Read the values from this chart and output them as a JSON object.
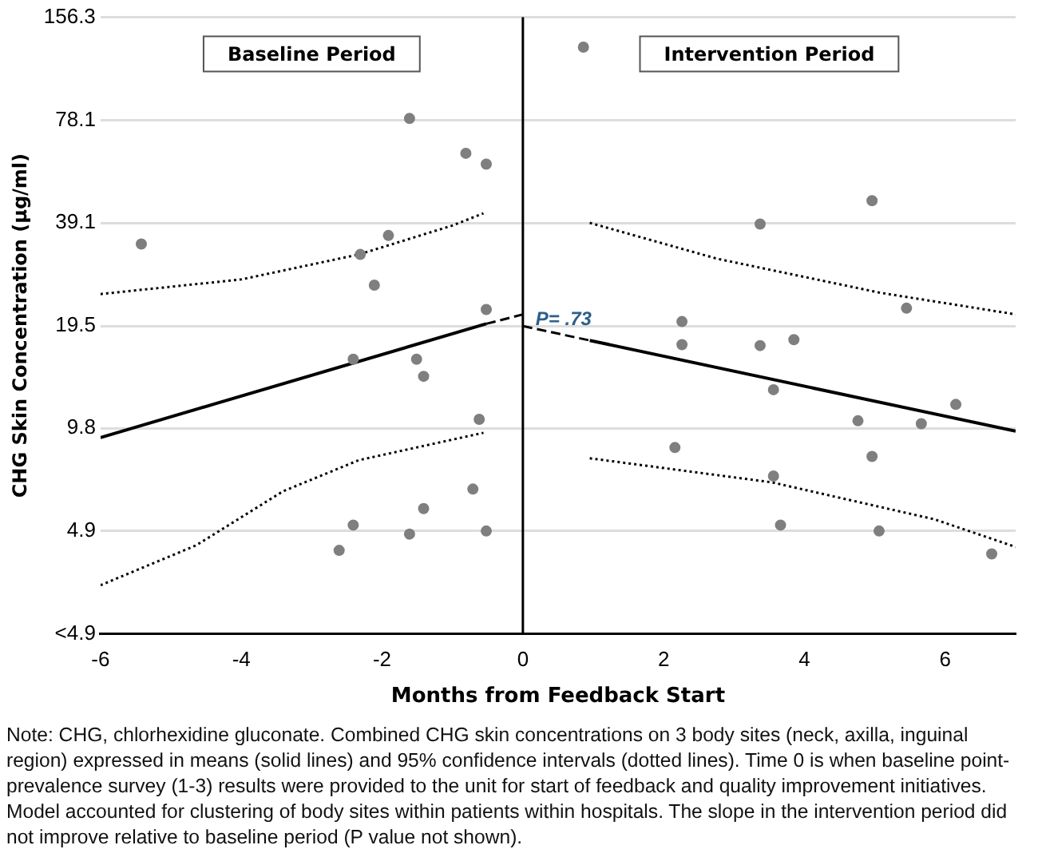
{
  "chart_data": {
    "type": "scatter",
    "xlabel": "Months from Feedback Start",
    "ylabel": "CHG Skin Concentration (µg/ml)",
    "annotations": [
      "Baseline Period",
      "Intervention Period",
      {
        "text": "P= .73",
        "x": 0,
        "y": 20.3
      },
      "Note: CHG, chlorhexidine gluconate. Combined CHG skin concentrations on 3 body sites (neck, axilla, inguinal region) expressed in means (solid lines) and 95% confidence intervals (dotted lines). Time 0 is when baseline point-prevalence survey (1-3) results were provided to the unit for start of feedback and quality improvement initiatives. Model accounted for clustering of body sites within patients within hospitals. The slope in the intervention period did not improve relative to baseline period (P value not shown)."
    ],
    "xlim": [
      -6,
      7
    ],
    "xticks": [
      -6,
      -4,
      -2,
      0,
      2,
      4,
      6
    ],
    "ylim": [
      2.45,
      156.3
    ],
    "yticks": [
      {
        "value": 2.45,
        "label": "<4.9"
      },
      4.9,
      9.8,
      19.5,
      39.1,
      78.1,
      156.3
    ],
    "log": "y",
    "grid": "y",
    "ref_lines": [
      {
        "axis": "x",
        "value": 0,
        "color": "#000000"
      }
    ],
    "series": [
      {
        "marker": "circle",
        "color": "#7f7f7f",
        "x": [
          -5.42,
          -2.31,
          -2.11,
          -1.91,
          -1.61,
          -0.81,
          -0.52,
          -0.52,
          -2.41,
          -1.51,
          -1.41,
          -0.62,
          -0.71,
          -1.41,
          -2.41,
          -1.61,
          -0.52,
          -2.61
        ],
        "values": [
          33.9,
          31.6,
          25.7,
          35.9,
          79,
          62.5,
          58.1,
          21.8,
          15.6,
          15.6,
          13.9,
          10.4,
          6.5,
          5.7,
          5.1,
          4.8,
          4.9,
          4.3
        ]
      },
      {
        "marker": "circle",
        "color": "#7f7f7f",
        "x": [
          0.86,
          3.37,
          4.96,
          5.45,
          2.26,
          2.26,
          3.37,
          3.85,
          3.56,
          6.15,
          4.76,
          5.66,
          2.16,
          4.96,
          3.56,
          3.66,
          5.06,
          6.66
        ],
        "values": [
          127.8,
          38.8,
          45.4,
          22,
          20.1,
          17.2,
          17.1,
          17.8,
          12.7,
          11.5,
          10.3,
          10.1,
          8.6,
          8.1,
          7.1,
          5.1,
          4.9,
          4.2
        ]
      },
      {
        "type": "line",
        "color": "#000000",
        "line_style": "solid",
        "x": [
          -6,
          -0.52
        ],
        "values": [
          9.2,
          19.8
        ]
      },
      {
        "type": "line",
        "color": "#000000",
        "line_style": "dashed",
        "x": [
          -0.52,
          0
        ],
        "values": [
          19.8,
          21.1
        ]
      },
      {
        "type": "line",
        "color": "#000000",
        "line_style": "dotted",
        "x": [
          -6,
          -4,
          -2.33,
          -1,
          -0.56
        ],
        "values": [
          24.2,
          26.7,
          31.6,
          38.4,
          41.7
        ]
      },
      {
        "type": "line",
        "color": "#000000",
        "line_style": "dotted",
        "x": [
          -6,
          -4.64,
          -3.41,
          -2.33,
          -0.56
        ],
        "values": [
          3.4,
          4.45,
          6.4,
          7.9,
          9.5
        ]
      },
      {
        "type": "line",
        "color": "#000000",
        "line_style": "dashed",
        "x": [
          0,
          0.95
        ],
        "values": [
          19.5,
          17.7
        ]
      },
      {
        "type": "line",
        "color": "#000000",
        "line_style": "solid",
        "x": [
          0.95,
          7
        ],
        "values": [
          17.7,
          9.6
        ]
      },
      {
        "type": "line",
        "color": "#000000",
        "line_style": "dotted",
        "x": [
          0.95,
          2.76,
          5.08,
          7
        ],
        "values": [
          39.1,
          30.7,
          24.4,
          21.1
        ]
      },
      {
        "type": "line",
        "color": "#000000",
        "line_style": "dotted",
        "x": [
          0.95,
          3.54,
          5.85,
          7
        ],
        "values": [
          8,
          6.8,
          5.3,
          4.4
        ]
      }
    ]
  }
}
